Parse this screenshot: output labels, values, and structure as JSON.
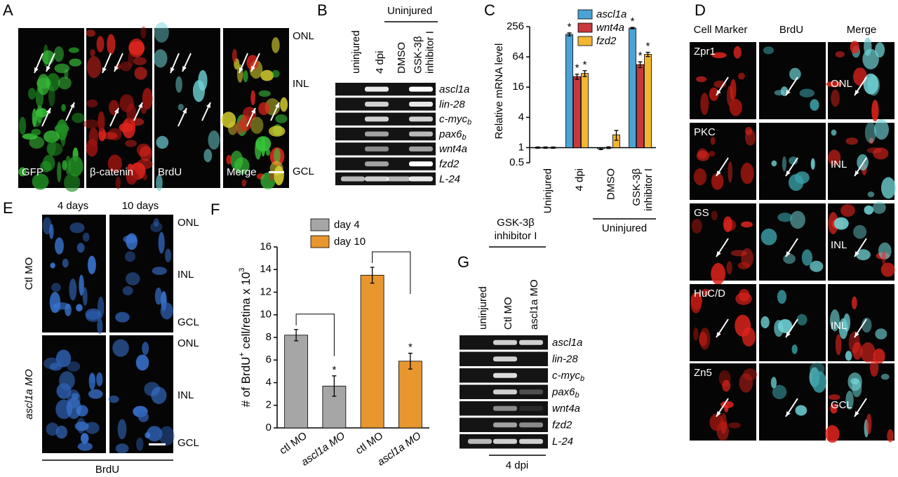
{
  "panels": {
    "A": {
      "letter": "A",
      "channels": [
        "GFP",
        "β-catenin",
        "BrdU",
        "Merge"
      ],
      "layers": [
        "ONL",
        "INL",
        "GCL"
      ]
    },
    "B": {
      "letter": "B",
      "group": "Uninjured",
      "lanes": [
        [
          "uninjured"
        ],
        [
          "4 dpi"
        ],
        [
          "DMSO"
        ],
        [
          "GSK-3β",
          "inhibitor I"
        ]
      ],
      "genes": [
        {
          "name": "ascl1a"
        },
        {
          "name": "lin-28"
        },
        {
          "name": "c-myc",
          "sub": "b"
        },
        {
          "name": "pax6",
          "sub": "b"
        },
        {
          "name": "wnt4a"
        },
        {
          "name": "fzd2"
        },
        {
          "name": "L-24"
        }
      ]
    },
    "D": {
      "letter": "D",
      "columns": [
        "Cell Marker",
        "BrdU",
        "Merge"
      ],
      "markers": [
        "Zpr1",
        "PKC",
        "GS",
        "HuC/D",
        "Zn5"
      ],
      "layers": [
        "ONL",
        "INL",
        "INL",
        "INL",
        "GCL"
      ]
    },
    "E": {
      "letter": "E",
      "columns": [
        "4 days",
        "10 days"
      ],
      "conditions": [
        "Ctl MO",
        "ascl1a MO"
      ],
      "layers": [
        "ONL",
        "INL",
        "GCL"
      ],
      "stain": "BrdU"
    },
    "G": {
      "letter": "G",
      "treatment": [
        "GSK-3β",
        "inhibitor I"
      ],
      "lanes": [
        [
          "uninjured"
        ],
        [
          "Ctl MO"
        ],
        [
          "ascl1a MO"
        ]
      ],
      "genes": [
        {
          "name": "ascl1a"
        },
        {
          "name": "lin-28"
        },
        {
          "name": "c-myc",
          "sub": "b"
        },
        {
          "name": "pax6",
          "sub": "b"
        },
        {
          "name": "wnt4a"
        },
        {
          "name": "fzd2"
        },
        {
          "name": "L-24"
        }
      ],
      "timepoint": "4 dpi"
    }
  },
  "chart_data": [
    {
      "letter": "C",
      "type": "bar",
      "y_label": "Relative mRNA level",
      "log_scale": true,
      "categories": [
        [
          "Uninjured"
        ],
        [
          "4 dpi"
        ],
        [
          "DMSO"
        ],
        [
          "GSK-3β",
          "inhibitor I"
        ]
      ],
      "group_label": "Uninjured",
      "series": [
        {
          "name": "ascl1a",
          "color": "#4aa3d4",
          "values": [
            1,
            180,
            0.95,
            240
          ],
          "errors": [
            0.03,
            12,
            0.04,
            8
          ],
          "annotations": [
            null,
            "*",
            null,
            "*"
          ]
        },
        {
          "name": "wnt4a",
          "color": "#c8383c",
          "values": [
            1,
            26,
            1,
            45
          ],
          "errors": [
            0.03,
            3,
            0.04,
            6
          ],
          "annotations": [
            null,
            "*",
            null,
            "*"
          ]
        },
        {
          "name": "fzd2",
          "color": "#f2b632",
          "values": [
            1,
            30,
            1.8,
            72
          ],
          "errors": [
            0.03,
            4,
            0.4,
            7
          ],
          "annotations": [
            null,
            "*",
            null,
            "*"
          ]
        }
      ],
      "ylim": [
        0.5,
        256
      ],
      "yticks": [
        0.5,
        1,
        4,
        16,
        64,
        256
      ]
    },
    {
      "letter": "F",
      "type": "bar",
      "y_label": [
        "# of BrdU",
        "+",
        " cell/retina x 10",
        "3"
      ],
      "categories": [
        "ctl MO",
        "ascl1a MO",
        "ctl MO",
        "ascl1a MO"
      ],
      "series": [
        {
          "name": "day 4",
          "color": "#a6a6a6",
          "values": [
            8.2,
            3.7,
            null,
            null
          ],
          "errors": [
            0.5,
            0.9,
            null,
            null
          ],
          "annotations": [
            null,
            "*",
            null,
            null
          ]
        },
        {
          "name": "day 10",
          "color": "#e8962e",
          "values": [
            null,
            null,
            13.5,
            5.9
          ],
          "errors": [
            null,
            null,
            0.7,
            0.7
          ],
          "annotations": [
            null,
            null,
            null,
            "*"
          ]
        }
      ],
      "ylim": [
        0,
        16
      ],
      "yticks": [
        0,
        2,
        4,
        6,
        8,
        10,
        12,
        14,
        16
      ]
    }
  ]
}
